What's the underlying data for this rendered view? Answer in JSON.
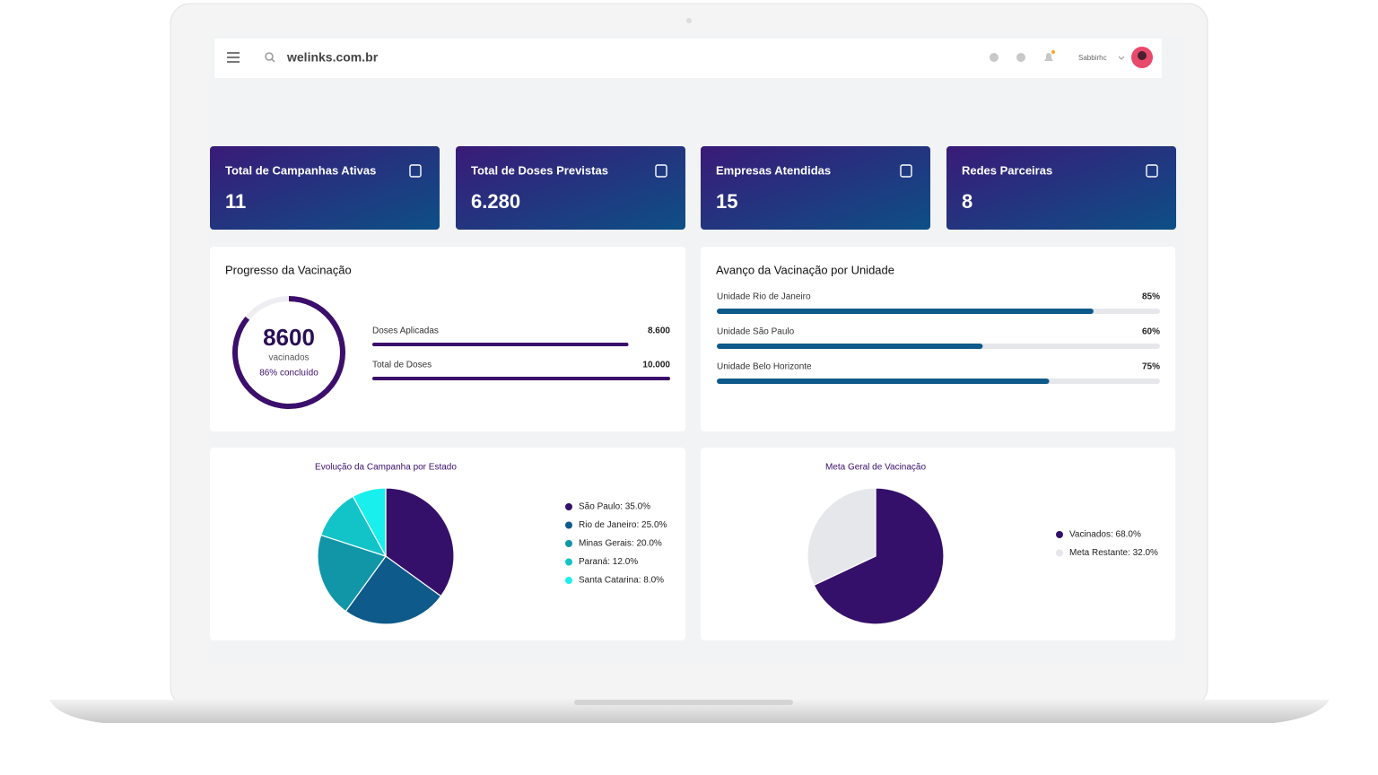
{
  "header": {
    "url": "welinks.com.br",
    "user": "Sabbirhc"
  },
  "kpis": [
    {
      "label": "Total de Campanhas Ativas",
      "value": "11"
    },
    {
      "label": "Total de Doses Previstas",
      "value": "6.280"
    },
    {
      "label": "Empresas Atendidas",
      "value": "15"
    },
    {
      "label": "Redes Parceiras",
      "value": "8"
    }
  ],
  "progress": {
    "title": "Progresso da Vacinação",
    "center": {
      "value": 8600,
      "caption": "vacinados",
      "percent": 86,
      "percent_label": "86% concluído",
      "lim": [
        0,
        100
      ]
    },
    "xlim": [
      0,
      10000
    ],
    "bars": [
      {
        "label": "Doses Aplicadas",
        "value": 8600,
        "value_label": "8.600"
      },
      {
        "label": "Total de Doses",
        "value": 10000,
        "value_label": "10.000"
      }
    ]
  },
  "units": {
    "title": "Avanço da Vacinação por Unidade",
    "xlim": [
      0,
      100
    ],
    "items": [
      {
        "label": "Unidade Rio de Janeiro",
        "value": 85,
        "value_label": "85%"
      },
      {
        "label": "Unidade São Paulo",
        "value": 60,
        "value_label": "60%"
      },
      {
        "label": "Unidade Belo Horizonte",
        "value": 75,
        "value_label": "75%"
      }
    ]
  },
  "chart_data": [
    {
      "type": "pie",
      "title": "Evolução da Campanha por Estado",
      "categories": [
        "São Paulo: 35.0%",
        "Rio de Janeiro: 25.0%",
        "Minas Gerais: 20.0%",
        "Paraná: 12.0%",
        "Santa Catarina: 8.0%"
      ],
      "values": [
        35,
        25,
        20,
        12,
        8
      ],
      "colors": [
        "#35106a",
        "#0e5a8a",
        "#1196a8",
        "#12c4c8",
        "#19f0ee"
      ]
    },
    {
      "type": "pie",
      "title": "Meta Geral de Vacinação",
      "categories": [
        "Vacinados: 68.0%",
        "Meta Restante: 32.0%"
      ],
      "values": [
        68,
        32
      ],
      "colors": [
        "#35106a",
        "#e5e7eb"
      ]
    }
  ]
}
